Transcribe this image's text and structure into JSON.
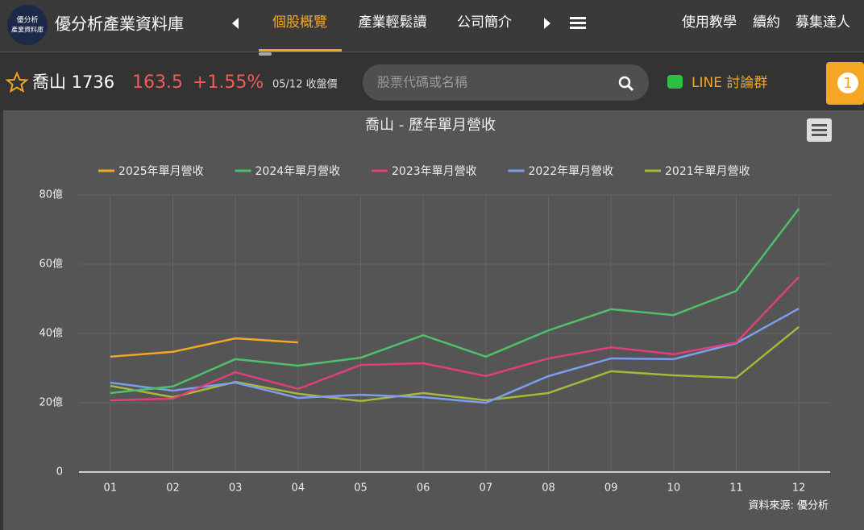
{
  "header": {
    "logo": [
      "優分析",
      "產業資料庫"
    ],
    "title": "優分析產業資料庫",
    "nav": [
      "個股概覽",
      "產業輕鬆讀",
      "公司簡介"
    ],
    "links": [
      "使用教學",
      "續約",
      "募集達人"
    ]
  },
  "stock": {
    "name": "喬山 1736",
    "price": "163.5",
    "change": "+1.55%",
    "date": "05/12 收盤價",
    "search": "股票代碼或名稱",
    "line": "LINE 討論群",
    "badge": "1"
  },
  "chart_data": {
    "type": "line",
    "title": "喬山 - 歷年單月營收",
    "source": "資料來源: 優分析",
    "categories": [
      "01",
      "02",
      "03",
      "04",
      "05",
      "06",
      "07",
      "08",
      "09",
      "10",
      "11",
      "12"
    ],
    "ylim": [
      0,
      80
    ],
    "yticks": [
      0,
      {
        "value": 20,
        "label": "20億"
      },
      {
        "value": 40,
        "label": "40億"
      },
      {
        "value": 60,
        "label": "60億"
      },
      {
        "value": 80,
        "label": "80億"
      }
    ],
    "grid": true,
    "series": [
      {
        "name": "2025年單月營收",
        "color": "#f5a623",
        "values": [
          33.3,
          34.7,
          38.6,
          37.4,
          null,
          null,
          null,
          null,
          null,
          null,
          null,
          null
        ]
      },
      {
        "name": "2024年單月營收",
        "color": "#4cc06a",
        "values": [
          22.8,
          24.7,
          32.6,
          30.7,
          33.0,
          39.5,
          33.3,
          40.9,
          47.0,
          45.3,
          52.3,
          76.0
        ]
      },
      {
        "name": "2023年單月營收",
        "color": "#e0407a",
        "values": [
          20.7,
          21.2,
          28.8,
          24.0,
          30.9,
          31.4,
          27.7,
          32.8,
          36.0,
          34.0,
          37.4,
          56.3
        ]
      },
      {
        "name": "2022年單月營收",
        "color": "#7b9ef0",
        "values": [
          25.8,
          23.5,
          25.8,
          21.4,
          22.3,
          21.6,
          20.0,
          27.7,
          32.8,
          32.6,
          37.2,
          47.2
        ]
      },
      {
        "name": "2021年單月營收",
        "color": "#a8b83a",
        "values": [
          24.9,
          21.6,
          26.0,
          22.6,
          20.5,
          22.8,
          20.7,
          22.8,
          29.1,
          27.9,
          27.2,
          41.9
        ]
      }
    ]
  }
}
